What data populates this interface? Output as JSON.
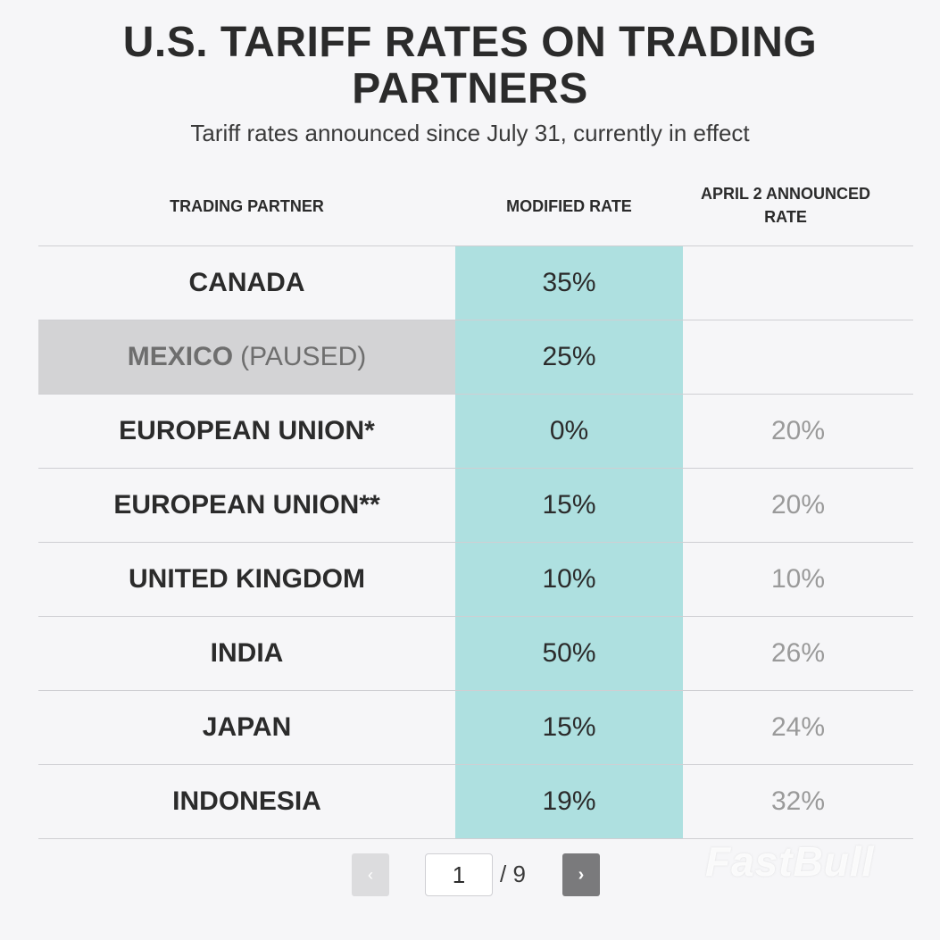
{
  "chart_data": {
    "type": "table",
    "title": "U.S. TARIFF RATES ON TRADING PARTNERS",
    "subtitle": "Tariff rates announced since July 31, currently in effect",
    "columns": [
      "TRADING PARTNER",
      "MODIFIED RATE",
      "APRIL 2 ANNOUNCED RATE"
    ],
    "rows": [
      {
        "partner": "CANADA",
        "note": "",
        "modified": "35%",
        "april2": ""
      },
      {
        "partner": "MEXICO",
        "note": "(PAUSED)",
        "modified": "25%",
        "april2": ""
      },
      {
        "partner": "EUROPEAN UNION*",
        "note": "",
        "modified": "0%",
        "april2": "20%"
      },
      {
        "partner": "EUROPEAN UNION**",
        "note": "",
        "modified": "15%",
        "april2": "20%"
      },
      {
        "partner": "UNITED KINGDOM",
        "note": "",
        "modified": "10%",
        "april2": "10%"
      },
      {
        "partner": "INDIA",
        "note": "",
        "modified": "50%",
        "april2": "26%"
      },
      {
        "partner": "JAPAN",
        "note": "",
        "modified": "15%",
        "april2": "24%"
      },
      {
        "partner": "INDONESIA",
        "note": "",
        "modified": "19%",
        "april2": "32%"
      }
    ],
    "highlight_color": "#aee0e0",
    "paused_color": "#d3d3d5"
  },
  "pagination": {
    "prev_label": "‹",
    "current_page": "1",
    "total_label": "/ 9",
    "next_label": "›"
  },
  "watermark": "FastBull"
}
